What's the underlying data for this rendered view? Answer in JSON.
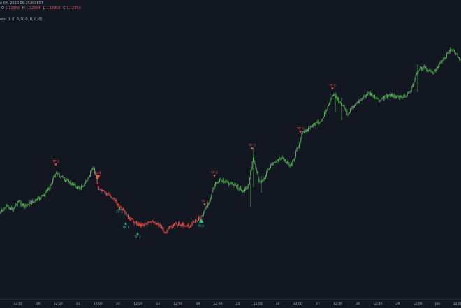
{
  "legend": {
    "symbol_line": "e 04, 2020 06:25:00 EST",
    "ohlc": [
      {
        "key": "O",
        "value": "1.12958"
      },
      {
        "key": "H",
        "value": "1.12964"
      },
      {
        "key": "L",
        "value": "1.12958"
      },
      {
        "key": "C",
        "value": "1.12958"
      }
    ],
    "ohlc_color": "#ef5350"
  },
  "indicator": {
    "label": "ers, 0, 0, 0, 0, 0, 0, 0, 0)"
  },
  "colors": {
    "background": "#131722",
    "up": "#5cb85c",
    "down": "#ef5350",
    "buy": "#26c281",
    "axis_text": "#b2b5be"
  },
  "time_axis": {
    "labels": [
      "12:00",
      "20",
      "12:00",
      "21",
      "12:00",
      "22",
      "12:00",
      "23",
      "12:00",
      "24",
      "12:00",
      "25",
      "12:00",
      "26",
      "12:00",
      "27",
      "12:00",
      "28",
      "12:00",
      "29",
      "12:00",
      "Jun",
      "12:00",
      "2",
      "12:00",
      "3"
    ]
  },
  "signals": [
    {
      "type": "tp",
      "label": "TP 3",
      "color": "#ef5350"
    },
    {
      "type": "sell",
      "label": "Sell",
      "color": "#ef5350"
    },
    {
      "type": "tp",
      "label": "TP 1",
      "color": "#26c281"
    },
    {
      "type": "tp",
      "label": "TP 2",
      "color": "#26c281"
    },
    {
      "type": "tp",
      "label": "TP 3",
      "color": "#26c281"
    },
    {
      "type": "buy",
      "label": "Buy",
      "color": "#26c281"
    },
    {
      "type": "tp",
      "label": "TP 1",
      "color": "#ef5350"
    },
    {
      "type": "tp",
      "label": "TP 2",
      "color": "#ef5350"
    },
    {
      "type": "tp",
      "label": "TP 3",
      "color": "#ef5350"
    },
    {
      "type": "tp",
      "label": "TP 4",
      "color": "#ef5350"
    },
    {
      "type": "tp",
      "label": "TP 5",
      "color": "#ef5350"
    }
  ]
}
